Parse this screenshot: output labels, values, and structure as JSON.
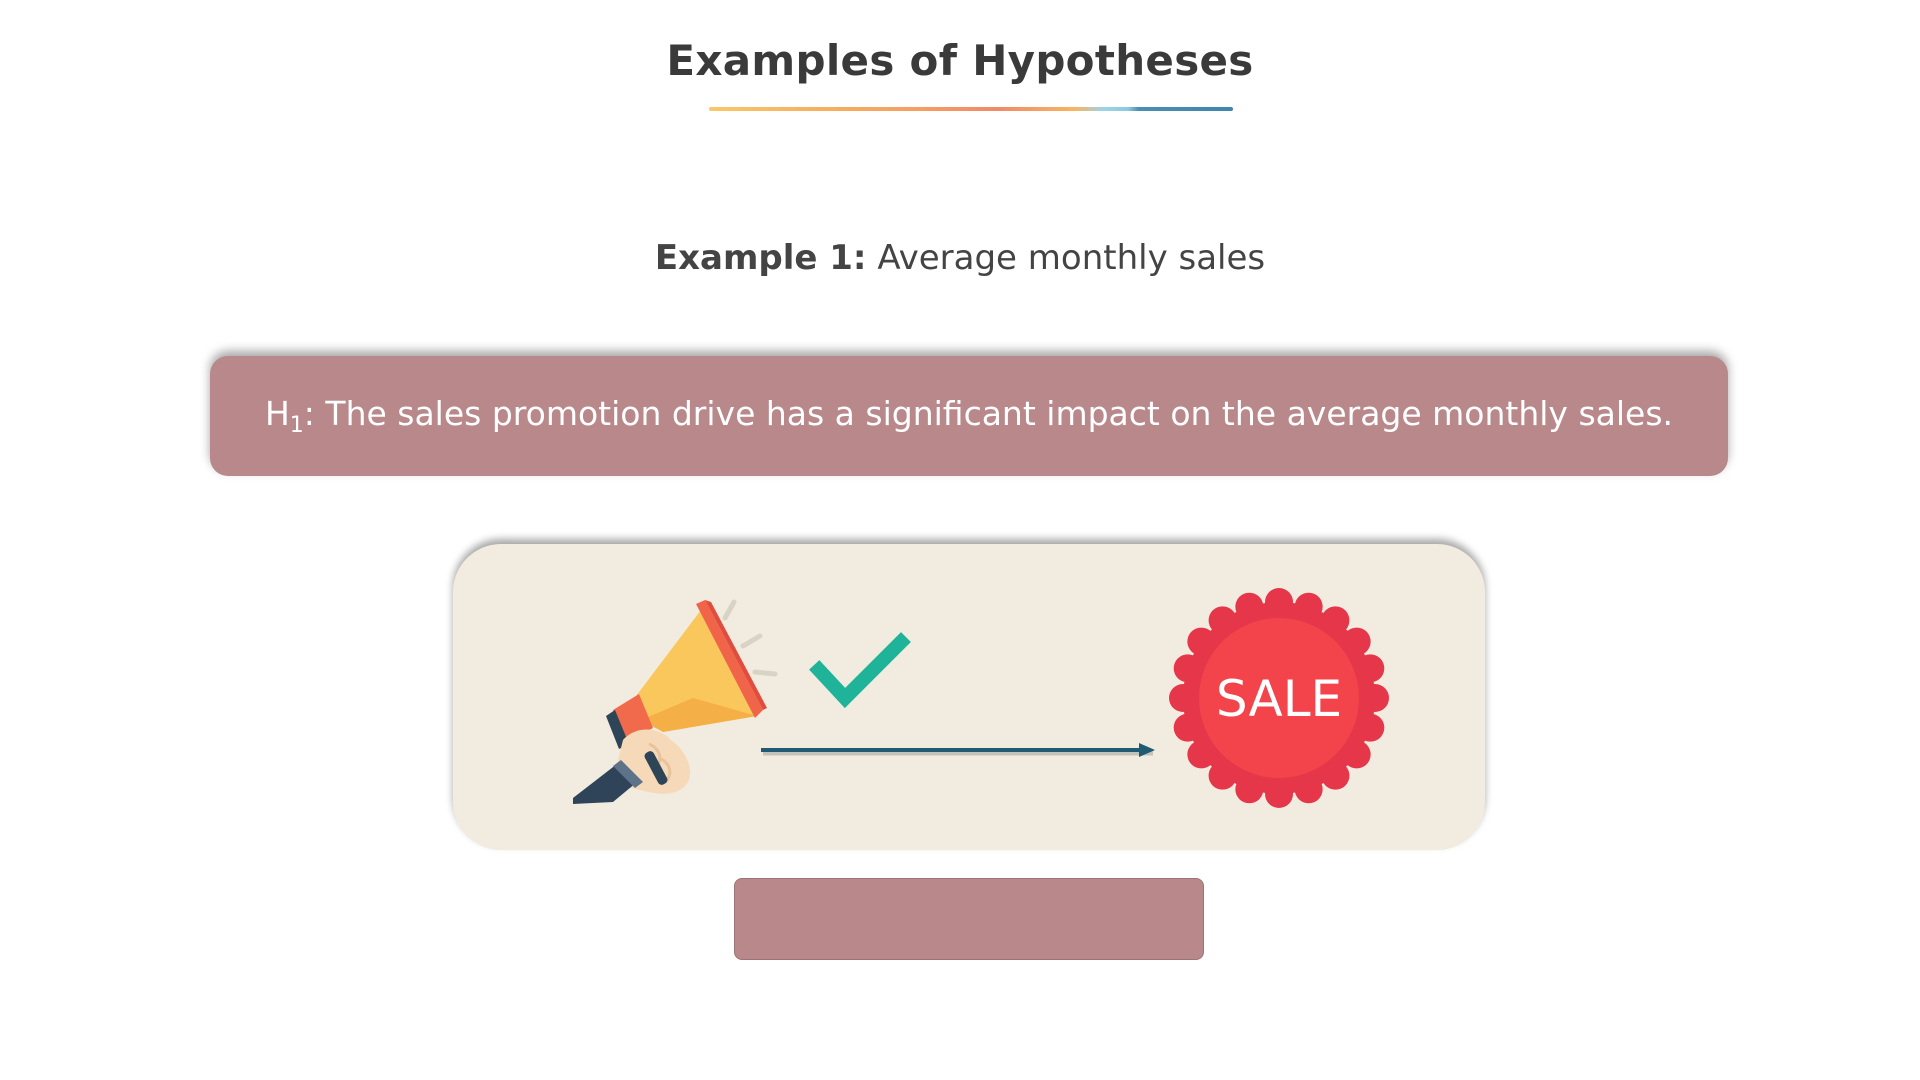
{
  "slide": {
    "title": "Examples of Hypotheses",
    "example_label": "Example 1:",
    "example_text": " Average monthly sales",
    "hypothesis": {
      "symbol": "H",
      "subscript": "1",
      "text": ": The sales promotion drive has a significant impact on the average monthly sales."
    },
    "illustration": {
      "sale_badge_text": "SALE",
      "icons": [
        "megaphone-icon",
        "checkmark-icon",
        "arrow-icon",
        "sale-badge-icon"
      ]
    }
  },
  "colors": {
    "box_fill": "#b8888b",
    "card_fill": "#f2ece0",
    "check": "#1fb39a",
    "arrow": "#1f5b73",
    "badge_outer": "#e5364a",
    "badge_inner": "#f2444a"
  }
}
